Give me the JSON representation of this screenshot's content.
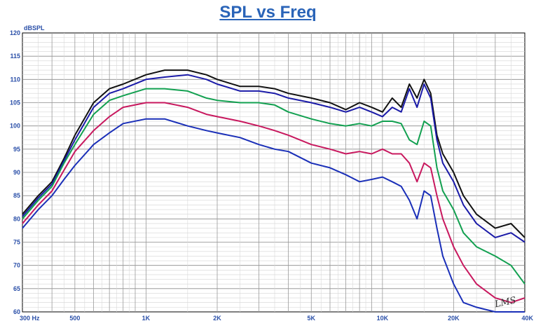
{
  "chart_data": {
    "type": "line",
    "title": "SPL vs Freq",
    "ylabel": "dBSPL",
    "xlabel": "",
    "x_scale": "log",
    "xlim": [
      300,
      40000
    ],
    "ylim": [
      60,
      120
    ],
    "grid": true,
    "y_ticks": [
      "60",
      "65",
      "70",
      "75",
      "80",
      "85",
      "90",
      "95",
      "100",
      "105",
      "110",
      "115",
      "120"
    ],
    "x_ticks": [
      {
        "value": 300,
        "label": "300 Hz"
      },
      {
        "value": 500,
        "label": "500"
      },
      {
        "value": 1000,
        "label": "1K"
      },
      {
        "value": 2000,
        "label": "2K"
      },
      {
        "value": 5000,
        "label": "5K"
      },
      {
        "value": 10000,
        "label": "10K"
      },
      {
        "value": 20000,
        "label": "20K"
      },
      {
        "value": 40000,
        "label": "40K"
      }
    ],
    "x": [
      300,
      350,
      400,
      450,
      500,
      600,
      700,
      800,
      1000,
      1200,
      1500,
      1800,
      2000,
      2500,
      3000,
      3500,
      4000,
      5000,
      6000,
      7000,
      8000,
      9000,
      10000,
      11000,
      12000,
      13000,
      14000,
      15000,
      16000,
      17000,
      18000,
      20000,
      22000,
      25000,
      30000,
      35000,
      40000
    ],
    "series": [
      {
        "color": "#111111",
        "values": [
          81,
          85,
          88,
          93,
          98,
          105,
          108,
          109,
          111,
          112,
          112,
          111,
          110,
          108.5,
          108.5,
          108,
          107,
          106,
          105,
          103.5,
          105,
          104,
          103,
          106,
          104,
          109,
          106,
          110,
          107,
          98,
          94,
          90,
          85,
          81,
          78,
          79,
          76
        ]
      },
      {
        "color": "#1a1aa8",
        "values": [
          80.5,
          84.5,
          87.5,
          92.5,
          97,
          104,
          107,
          108,
          110,
          110.5,
          111,
          110,
          109,
          107.5,
          107.5,
          107,
          106,
          105,
          104,
          103,
          104,
          103,
          102,
          104,
          103,
          108,
          104,
          109,
          106,
          97,
          92,
          88,
          83,
          79,
          76,
          77,
          75
        ]
      },
      {
        "color": "#12a050",
        "values": [
          80,
          84,
          87,
          92,
          96,
          102.5,
          105.5,
          106.5,
          108,
          108,
          107.5,
          106,
          105.5,
          105,
          105,
          104.5,
          103,
          101.5,
          100.5,
          100,
          100.5,
          100,
          101,
          101,
          100.5,
          97,
          96,
          101,
          100,
          91,
          86,
          82,
          77,
          74,
          72,
          70,
          66
        ]
      },
      {
        "color": "#c8185e",
        "values": [
          79,
          83,
          86,
          90.5,
          94.5,
          99,
          102,
          104,
          105,
          105,
          104,
          102.5,
          102,
          101,
          100,
          99,
          98,
          96,
          95,
          94,
          94.5,
          94,
          95,
          94,
          94,
          92,
          88,
          92,
          91,
          85,
          80,
          74,
          70,
          66,
          63,
          62,
          63
        ]
      },
      {
        "color": "#1a2fb8",
        "values": [
          78,
          82,
          85,
          88.5,
          91.5,
          96,
          98.5,
          100.5,
          101.5,
          101.5,
          100,
          99,
          98.5,
          97.5,
          96,
          95,
          94.5,
          92,
          91,
          89.5,
          88,
          88.5,
          89,
          88,
          87,
          84,
          80,
          86,
          85,
          78,
          72,
          66,
          62,
          61,
          60,
          60,
          60
        ]
      }
    ],
    "annotation": "LMS"
  }
}
